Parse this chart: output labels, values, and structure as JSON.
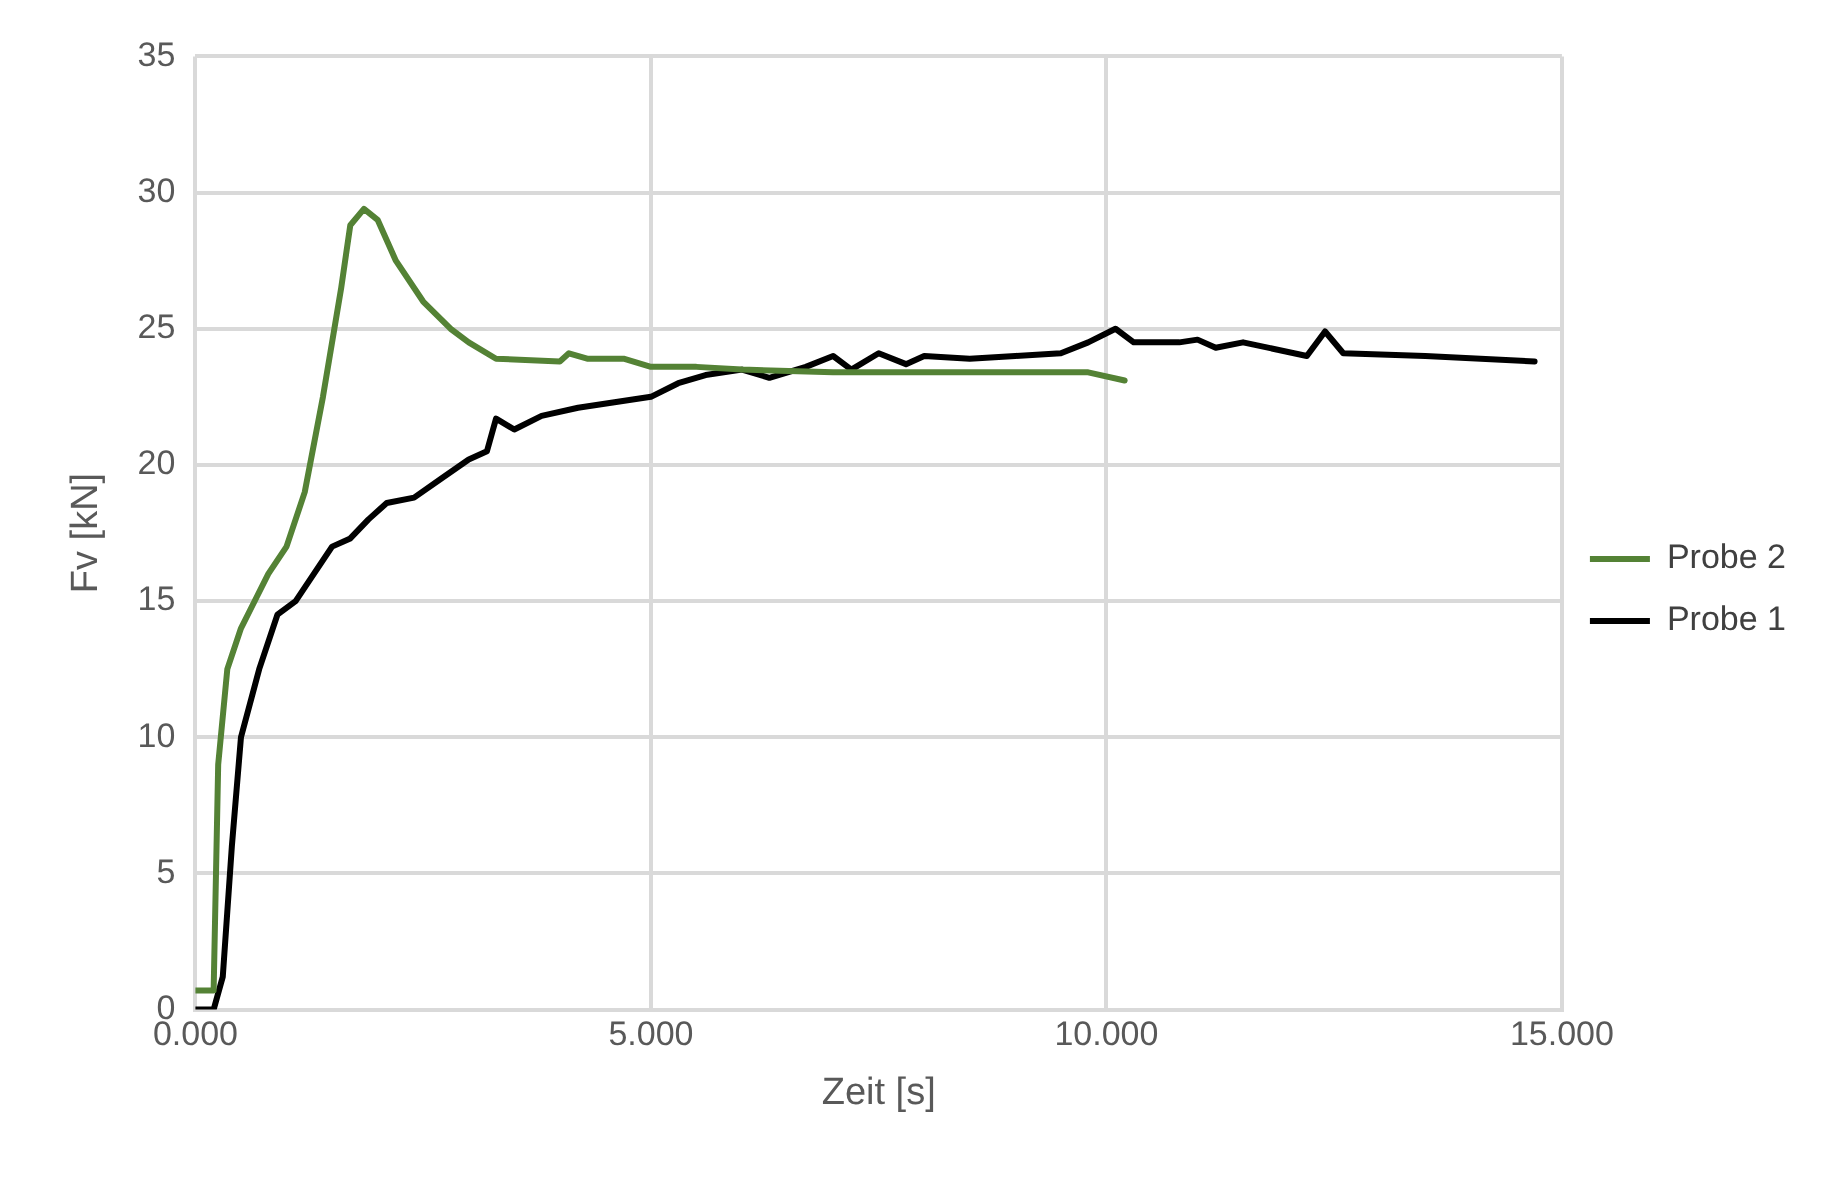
{
  "chart_data": {
    "type": "line",
    "xlabel": "Zeit [s]",
    "ylabel": "Fv [kN]",
    "xlim": [
      0,
      15
    ],
    "ylim": [
      0,
      35
    ],
    "xticks": [
      {
        "value": 0,
        "label": "0.000"
      },
      {
        "value": 5,
        "label": "5.000"
      },
      {
        "value": 10,
        "label": "10.000"
      },
      {
        "value": 15,
        "label": "15.000"
      }
    ],
    "yticks": [
      0,
      5,
      10,
      15,
      20,
      25,
      30,
      35
    ],
    "grid": true,
    "legend": "right",
    "marker": "none",
    "line_style": "solid",
    "series": [
      {
        "name": "Probe 2",
        "color": "#548235",
        "x": [
          0,
          0.2,
          0.25,
          0.35,
          0.5,
          0.8,
          1.0,
          1.2,
          1.4,
          1.6,
          1.7,
          1.85,
          2.0,
          2.2,
          2.5,
          2.8,
          3.0,
          3.3,
          4.0,
          4.1,
          4.3,
          4.7,
          5.0,
          5.5,
          6,
          7,
          8,
          9,
          9.8,
          10.2
        ],
        "values": [
          0.7,
          0.7,
          9,
          12.5,
          14,
          16,
          17,
          19,
          22.5,
          26.5,
          28.8,
          29.4,
          29,
          27.5,
          26,
          25,
          24.5,
          23.9,
          23.8,
          24.1,
          23.9,
          23.9,
          23.6,
          23.6,
          23.5,
          23.4,
          23.4,
          23.4,
          23.4,
          23.1
        ]
      },
      {
        "name": "Probe 1",
        "color": "#000000",
        "x": [
          0,
          0.2,
          0.3,
          0.4,
          0.5,
          0.7,
          0.9,
          1.1,
          1.3,
          1.5,
          1.7,
          1.9,
          2.1,
          2.4,
          2.7,
          3.0,
          3.2,
          3.3,
          3.5,
          3.8,
          4.2,
          4.6,
          5.0,
          5.3,
          5.6,
          6.0,
          6.3,
          6.7,
          7.0,
          7.2,
          7.5,
          7.8,
          8.0,
          8.5,
          9.0,
          9.5,
          9.8,
          10.1,
          10.3,
          10.8,
          11,
          11.2,
          11.5,
          12.2,
          12.4,
          12.6,
          13.5,
          14.7
        ],
        "values": [
          0,
          0,
          1.2,
          6,
          10,
          12.5,
          14.5,
          15,
          16,
          17,
          17.3,
          18,
          18.6,
          18.8,
          19.5,
          20.2,
          20.5,
          21.7,
          21.3,
          21.8,
          22.1,
          22.3,
          22.5,
          23,
          23.3,
          23.5,
          23.2,
          23.6,
          24,
          23.5,
          24.1,
          23.7,
          24,
          23.9,
          24,
          24.1,
          24.5,
          25,
          24.5,
          24.5,
          24.6,
          24.3,
          24.5,
          24,
          24.9,
          24.1,
          24,
          23.8
        ]
      }
    ]
  }
}
